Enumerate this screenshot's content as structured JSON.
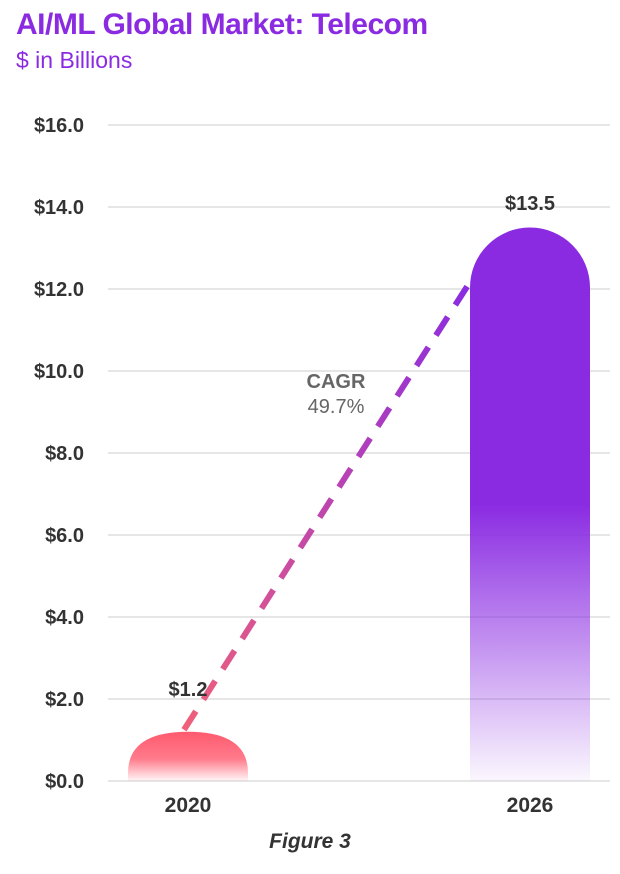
{
  "chart_data": {
    "type": "bar",
    "title": "AI/ML Global Market: Telecom",
    "subtitle": "$ in Billions",
    "categories": [
      "2020",
      "2026"
    ],
    "values": [
      1.2,
      13.5
    ],
    "value_labels": [
      "$1.2",
      "$13.5"
    ],
    "ylim": [
      0,
      16
    ],
    "yticks": [
      0,
      2,
      4,
      6,
      8,
      10,
      12,
      14,
      16
    ],
    "ytick_labels": [
      "$0.0",
      "$2.0",
      "$4.0",
      "$6.0",
      "$8.0",
      "$10.0",
      "$12.0",
      "$14.0",
      "$16.0"
    ],
    "grid": true,
    "legend": "none",
    "annotation": {
      "label": "CAGR",
      "value": "49.7%"
    },
    "colors": {
      "title": "#8a2be2",
      "bar_2020": "#ff5a6e",
      "bar_2026": "#8a2be2",
      "trend_start": "#f0607a",
      "trend_end": "#8a2be2",
      "grid": "#e6e6e6",
      "axis_text": "#333333",
      "annotation_text": "#666666"
    }
  },
  "caption": "Figure 3"
}
